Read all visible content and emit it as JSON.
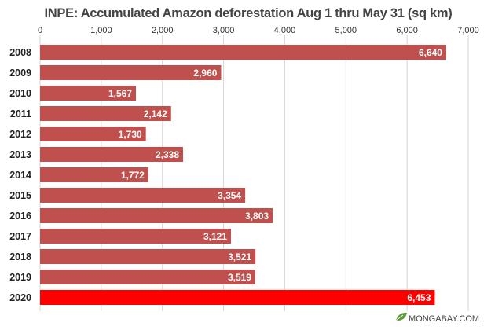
{
  "chart_data": {
    "type": "bar",
    "orientation": "horizontal",
    "title": "INPE: Accumulated Amazon deforestation Aug 1 thru May 31 (sq km)",
    "xlabel": "",
    "ylabel": "",
    "categories": [
      "2008",
      "2009",
      "2010",
      "2011",
      "2012",
      "2013",
      "2014",
      "2015",
      "2016",
      "2017",
      "2018",
      "2019",
      "2020"
    ],
    "values": [
      6640,
      2960,
      1567,
      2142,
      1730,
      2338,
      1772,
      3354,
      3803,
      3121,
      3521,
      3519,
      6453
    ],
    "data_labels": [
      "6,640",
      "2,960",
      "1,567",
      "2,142",
      "1,730",
      "2,338",
      "1,772",
      "3,354",
      "3,803",
      "3,121",
      "3,521",
      "3,519",
      "6,453"
    ],
    "xlim": [
      0,
      7000
    ],
    "x_ticks": [
      0,
      1000,
      2000,
      3000,
      4000,
      5000,
      6000,
      7000
    ],
    "x_tick_labels": [
      "0",
      "1,000",
      "2,000",
      "3,000",
      "4,000",
      "5,000",
      "6,000",
      "7,000"
    ],
    "x_axis_position": "top",
    "grid": true,
    "colors": {
      "bar": "#c0504d",
      "highlight_bar": "#ff0000",
      "highlight_category": "2020"
    }
  },
  "credit": {
    "text": "MONGABAY.COM",
    "icon": "leaf-icon"
  }
}
